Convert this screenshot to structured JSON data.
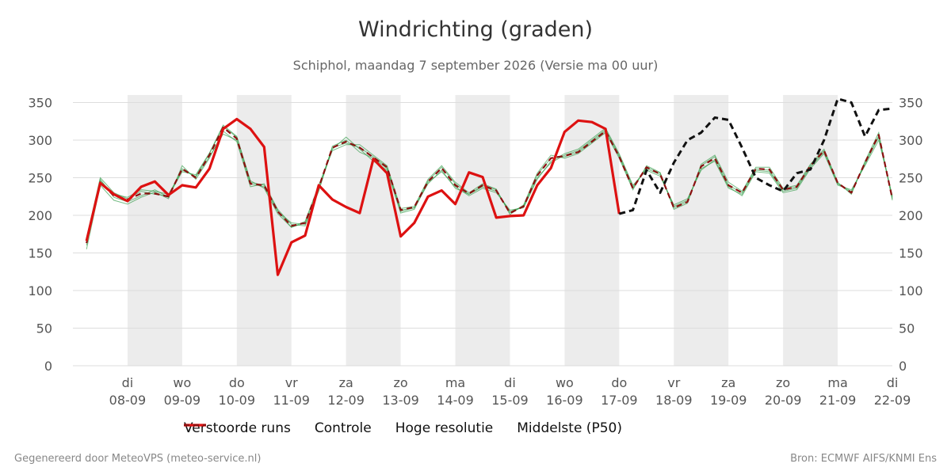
{
  "title": "Windrichting (graden)",
  "subtitle": "Schiphol, maandag  7 september 2026 (Versie ma 00 uur)",
  "footer": {
    "left": "Gegenereerd door MeteoVPS (meteo-service.nl)",
    "right": "Bron: ECMWF AIFS/KNMI Ens"
  },
  "colors": {
    "ensemble": "#2e9a45",
    "control": "#111111",
    "hires": "#dd1111",
    "median": "#8b1010",
    "weekend_shade": "#ececec",
    "grid": "#dddddd"
  },
  "chart_data": {
    "type": "line",
    "title": "Windrichting (graden)",
    "subtitle": "Schiphol, maandag  7 september 2026 (Versie ma 00 uur)",
    "ylim": [
      0,
      360
    ],
    "yticks": [
      0,
      50,
      100,
      150,
      200,
      250,
      300,
      350
    ],
    "xlim": [
      7.25,
      22.0
    ],
    "grid": "horizontal",
    "legend_position": "bottom",
    "x_ticks": [
      {
        "x": 8.0,
        "day": "di",
        "date": "08-09"
      },
      {
        "x": 9.0,
        "day": "wo",
        "date": "09-09"
      },
      {
        "x": 10.0,
        "day": "do",
        "date": "10-09"
      },
      {
        "x": 11.0,
        "day": "vr",
        "date": "11-09"
      },
      {
        "x": 12.0,
        "day": "za",
        "date": "12-09"
      },
      {
        "x": 13.0,
        "day": "zo",
        "date": "13-09"
      },
      {
        "x": 14.0,
        "day": "ma",
        "date": "14-09"
      },
      {
        "x": 15.0,
        "day": "di",
        "date": "15-09"
      },
      {
        "x": 16.0,
        "day": "wo",
        "date": "16-09"
      },
      {
        "x": 17.0,
        "day": "do",
        "date": "17-09"
      },
      {
        "x": 18.0,
        "day": "vr",
        "date": "18-09"
      },
      {
        "x": 19.0,
        "day": "za",
        "date": "19-09"
      },
      {
        "x": 20.0,
        "day": "zo",
        "date": "20-09"
      },
      {
        "x": 21.0,
        "day": "ma",
        "date": "21-09"
      },
      {
        "x": 22.0,
        "day": "di",
        "date": "22-09"
      }
    ],
    "shaded_periods": [
      [
        8.0,
        9.0
      ],
      [
        10.0,
        11.0
      ],
      [
        12.0,
        13.0
      ],
      [
        14.0,
        15.0
      ],
      [
        16.0,
        17.0
      ],
      [
        18.0,
        19.0
      ],
      [
        20.0,
        21.0
      ]
    ],
    "legend": [
      "Verstoorde runs",
      "Controle",
      "Hoge resolutie",
      "Middelste (P50)"
    ],
    "series": [
      {
        "name": "Hoge resolutie",
        "style": "solid",
        "x": [
          7.25,
          7.5,
          7.75,
          8.0,
          8.25,
          8.5,
          8.75,
          9.0,
          9.25,
          9.5,
          9.75,
          10.0,
          10.25,
          10.5,
          10.75,
          11.0,
          11.25,
          11.5,
          11.75,
          12.0,
          12.25,
          12.5,
          12.75,
          13.0,
          13.25,
          13.5,
          13.75,
          14.0,
          14.25,
          14.5,
          14.75,
          15.0,
          15.25,
          15.5,
          15.75,
          16.0,
          16.25,
          16.5,
          16.75,
          17.0
        ],
        "values": [
          166,
          243,
          228,
          219,
          238,
          245,
          227,
          240,
          237,
          262,
          315,
          328,
          315,
          291,
          121,
          164,
          173,
          240,
          221,
          211,
          203,
          275,
          256,
          172,
          190,
          225,
          233,
          215,
          257,
          251,
          197,
          199,
          200,
          240,
          263,
          311,
          326,
          324,
          315,
          202
        ]
      },
      {
        "name": "Controle",
        "style": "dashed",
        "x": [
          17.0,
          17.25,
          17.5,
          17.75,
          18.0,
          18.25,
          18.5,
          18.75,
          19.0,
          19.25,
          19.5,
          19.75,
          20.0,
          20.25,
          20.5,
          20.75,
          21.0,
          21.25,
          21.5,
          21.75,
          22.0
        ],
        "values": [
          202,
          207,
          260,
          230,
          270,
          300,
          310,
          330,
          327,
          290,
          250,
          240,
          232,
          256,
          261,
          300,
          355,
          350,
          305,
          340,
          342
        ]
      },
      {
        "name": "Middelste (P50)",
        "style": "dashed",
        "x": [
          7.25,
          7.5,
          7.75,
          8.0,
          8.25,
          8.5,
          8.75,
          9.0,
          9.25,
          9.5,
          9.75,
          10.0,
          10.25,
          10.5,
          10.75,
          11.0,
          11.25,
          11.5,
          11.75,
          12.0,
          12.25,
          12.5,
          12.75,
          13.0,
          13.25,
          13.5,
          13.75,
          14.0,
          14.25,
          14.5,
          14.75,
          15.0,
          15.25,
          15.5,
          15.75,
          16.0,
          16.25,
          16.5,
          16.75,
          17.0,
          17.25,
          17.5,
          17.75,
          18.0,
          18.25,
          18.5,
          18.75,
          19.0,
          19.25,
          19.5,
          19.75,
          20.0,
          20.25,
          20.5,
          20.75,
          21.0,
          21.25,
          21.5,
          21.75,
          22.0
        ],
        "values": [
          163,
          244,
          226,
          221,
          229,
          229,
          225,
          262,
          250,
          280,
          317,
          302,
          242,
          240,
          205,
          186,
          190,
          237,
          290,
          298,
          290,
          277,
          264,
          207,
          211,
          245,
          263,
          240,
          229,
          240,
          233,
          203,
          212,
          253,
          276,
          279,
          284,
          298,
          312,
          278,
          236,
          264,
          255,
          210,
          218,
          265,
          276,
          240,
          230,
          262,
          261,
          234,
          238,
          266,
          286,
          243,
          230,
          270,
          307,
          222
        ]
      }
    ],
    "ensemble_members": {
      "name": "Verstoorde runs",
      "x": [
        7.25,
        7.5,
        7.75,
        8.0,
        8.25,
        8.5,
        8.75,
        9.0,
        9.25,
        9.5,
        9.75,
        10.0,
        10.25,
        10.5,
        10.75,
        11.0,
        11.25,
        11.5,
        11.75,
        12.0,
        12.25,
        12.5,
        12.75,
        13.0,
        13.25,
        13.5,
        13.75,
        14.0,
        14.25,
        14.5,
        14.75,
        15.0,
        15.25,
        15.5,
        15.75,
        16.0,
        16.25,
        16.5,
        16.75,
        17.0,
        17.25,
        17.5,
        17.75,
        18.0,
        18.25,
        18.5,
        18.75,
        19.0,
        19.25,
        19.5,
        19.75,
        20.0,
        20.25,
        20.5,
        20.75,
        21.0,
        21.25,
        21.5,
        21.75,
        22.0
      ],
      "members": [
        [
          160,
          248,
          224,
          218,
          226,
          234,
          224,
          262,
          251,
          278,
          308,
          300,
          242,
          238,
          205,
          190,
          188,
          232,
          292,
          300,
          284,
          276,
          262,
          205,
          210,
          242,
          260,
          236,
          228,
          238,
          232,
          205,
          212,
          250,
          270,
          280,
          286,
          300,
          314,
          280,
          238,
          262,
          254,
          212,
          220,
          262,
          272,
          236,
          228,
          260,
          258,
          232,
          236,
          264,
          284,
          242,
          232,
          268,
          304,
          224
        ],
        [
          170,
          250,
          230,
          222,
          232,
          228,
          226,
          258,
          254,
          283,
          320,
          305,
          246,
          236,
          202,
          184,
          192,
          240,
          286,
          294,
          294,
          280,
          266,
          209,
          212,
          248,
          266,
          244,
          230,
          242,
          235,
          201,
          214,
          256,
          280,
          276,
          282,
          296,
          310,
          276,
          234,
          266,
          257,
          208,
          216,
          268,
          280,
          244,
          232,
          264,
          264,
          236,
          240,
          268,
          288,
          244,
          228,
          272,
          310,
          220
        ],
        [
          155,
          240,
          220,
          215,
          224,
          231,
          222,
          266,
          248,
          276,
          312,
          298,
          238,
          242,
          208,
          188,
          186,
          234,
          288,
          304,
          288,
          272,
          260,
          203,
          208,
          244,
          258,
          238,
          226,
          236,
          230,
          207,
          210,
          248,
          272,
          282,
          288,
          302,
          316,
          282,
          240,
          260,
          252,
          214,
          222,
          260,
          274,
          238,
          226,
          258,
          256,
          230,
          234,
          262,
          282,
          240,
          234,
          266,
          300,
          226
        ],
        [
          168,
          246,
          228,
          224,
          234,
          232,
          228,
          260,
          252,
          282,
          318,
          304,
          244,
          240,
          206,
          184,
          190,
          238,
          290,
          296,
          290,
          278,
          264,
          207,
          210,
          246,
          264,
          242,
          228,
          240,
          234,
          203,
          212,
          254,
          276,
          278,
          284,
          298,
          312,
          278,
          236,
          264,
          256,
          210,
          218,
          266,
          278,
          240,
          230,
          262,
          260,
          234,
          238,
          266,
          286,
          242,
          230,
          270,
          306,
          222
        ]
      ]
    }
  }
}
